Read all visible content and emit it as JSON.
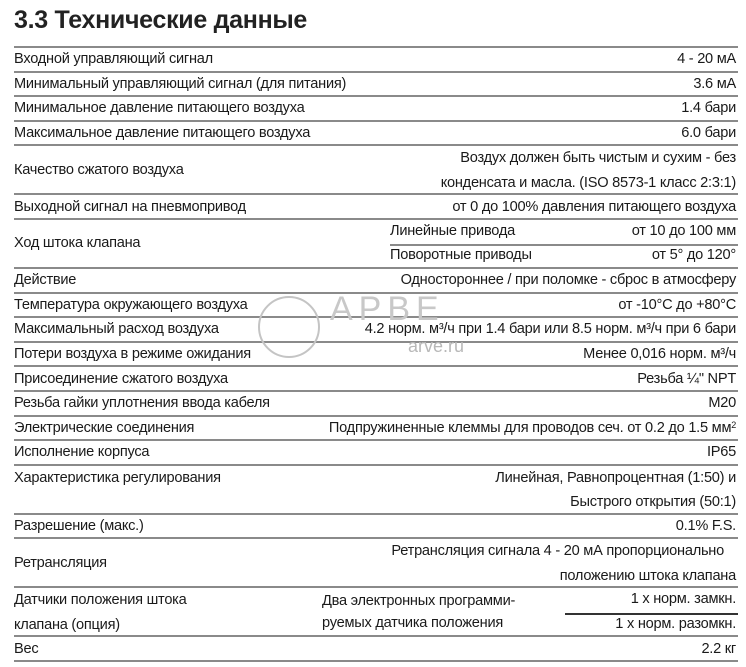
{
  "title": "3.3 Технические данные",
  "watermark": {
    "logo": "АРВЕ",
    "site": "arve.ru"
  },
  "rows": [
    {
      "label": "Входной управляющий сигнал",
      "value": "4 - 20 мА"
    },
    {
      "label": "Минимальный управляющий сигнал (для питания)",
      "value": "3.6 мА"
    },
    {
      "label": "Минимальное давление питающего воздуха",
      "value": "1.4 бари"
    },
    {
      "label": "Максимальное давление питающего воздуха",
      "value": "6.0 бари"
    },
    {
      "label": "Качество сжатого воздуха",
      "value_line1": "Воздух должен быть чистым и сухим - без",
      "value_line2": "конденсата и масла. (ISO 8573-1 класс 2:3:1)"
    },
    {
      "label": "Выходной сигнал на пневмопривод",
      "value": "от 0 до 100% давления питающего воздуха"
    },
    {
      "label": "Ход штока клапана",
      "sub": [
        {
          "name": "Линейные привода",
          "value": "от 10 до 100 мм"
        },
        {
          "name": "Поворотные приводы",
          "value": "от 5° до 120°"
        }
      ]
    },
    {
      "label": "Действие",
      "value": "Одностороннее / при поломке - сброс в атмосферу"
    },
    {
      "label": "Температура окружающего воздуха",
      "value": "от -10°C до +80°C"
    },
    {
      "label": "Максимальный расход воздуха",
      "value": "4.2 норм. м³/ч при 1.4 бари или 8.5 норм. м³/ч при 6 бари"
    },
    {
      "label": "Потери воздуха в режиме ожидания",
      "value": "Менее 0,016 норм. м³/ч"
    },
    {
      "label": "Присоединение сжатого воздуха",
      "value": "Резьба ¼\" NPT"
    },
    {
      "label": "Резьба гайки уплотнения ввода кабеля",
      "value": "M20"
    },
    {
      "label": "Электрические соединения",
      "value": "Подпружиненные клеммы для проводов сеч. от 0.2 до 1.5 мм",
      "value_sup": "2"
    },
    {
      "label": "Исполнение корпуса",
      "value": "IP65"
    },
    {
      "label": "Характеристика регулирования",
      "value_line1": "Линейная, Равнопроцентная (1:50) и",
      "value_line2": "Быстрого открытия (50:1)"
    },
    {
      "label": "Разрешение (макс.)",
      "value": "0.1% F.S."
    },
    {
      "label": "Ретрансляция",
      "value_line1": "Ретрансляция сигнала 4 - 20 мА пропорционально",
      "value_line2": "положению штока клапана"
    },
    {
      "label_line1": "Датчики положения штока",
      "label_line2": "клапана (опция)",
      "mid_line1": "Два электронных программи-",
      "mid_line2": "руемых датчика положения",
      "sub": [
        {
          "value": "1 x норм. замкн."
        },
        {
          "value": "1 x норм. разомкн."
        }
      ]
    },
    {
      "label": "Вес",
      "value": "2.2 кг"
    }
  ]
}
